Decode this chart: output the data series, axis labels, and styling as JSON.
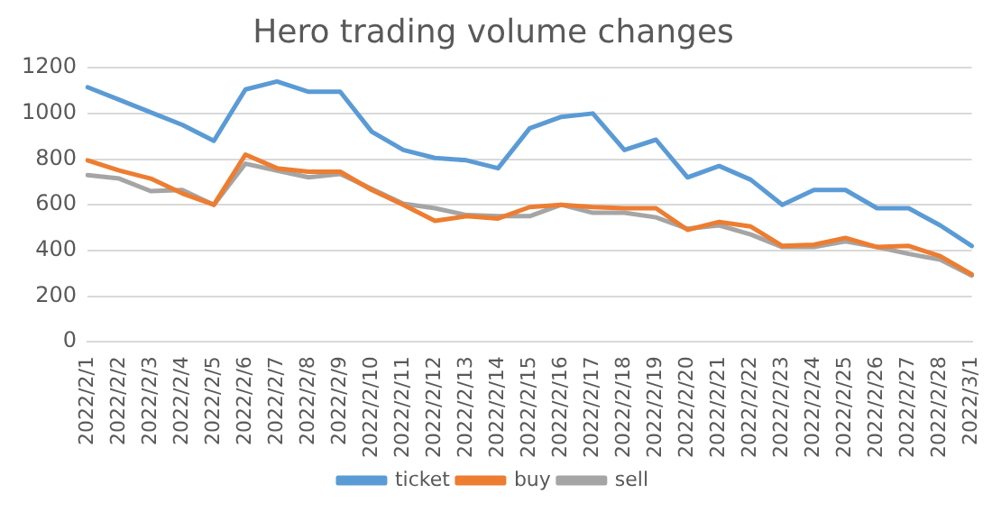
{
  "chart_data": {
    "type": "line",
    "title": "Hero trading volume changes",
    "categories": [
      "2022/2/1",
      "2022/2/2",
      "2022/2/3",
      "2022/2/4",
      "2022/2/5",
      "2022/2/6",
      "2022/2/7",
      "2022/2/8",
      "2022/2/9",
      "2022/2/10",
      "2022/2/11",
      "2022/2/12",
      "2022/2/13",
      "2022/2/14",
      "2022/2/15",
      "2022/2/16",
      "2022/2/17",
      "2022/2/18",
      "2022/2/19",
      "2022/2/20",
      "2022/2/21",
      "2022/2/22",
      "2022/2/23",
      "2022/2/24",
      "2022/2/25",
      "2022/2/26",
      "2022/2/27",
      "2022/2/28",
      "2022/3/1"
    ],
    "series": [
      {
        "name": "ticket",
        "color": "#5b9bd5",
        "values": [
          1115,
          1060,
          1005,
          950,
          880,
          1105,
          1140,
          1095,
          1095,
          920,
          840,
          805,
          795,
          760,
          935,
          985,
          1000,
          840,
          885,
          720,
          770,
          710,
          600,
          665,
          665,
          585,
          585,
          510,
          420
        ]
      },
      {
        "name": "buy",
        "color": "#ed7d31",
        "values": [
          795,
          750,
          715,
          650,
          600,
          820,
          760,
          745,
          745,
          665,
          600,
          530,
          550,
          540,
          590,
          600,
          590,
          585,
          585,
          490,
          525,
          505,
          420,
          425,
          455,
          415,
          420,
          375,
          295
        ]
      },
      {
        "name": "sell",
        "color": "#a5a5a5",
        "values": [
          730,
          715,
          660,
          665,
          600,
          780,
          750,
          720,
          735,
          670,
          605,
          585,
          555,
          550,
          550,
          600,
          565,
          565,
          545,
          495,
          510,
          470,
          415,
          415,
          440,
          415,
          385,
          360,
          290
        ]
      }
    ],
    "ylim": [
      0,
      1200
    ],
    "yticks": [
      0,
      200,
      400,
      600,
      800,
      1000,
      1200
    ],
    "grid": "y",
    "legend": "bottom",
    "marker": "none",
    "line_style": "solid"
  }
}
